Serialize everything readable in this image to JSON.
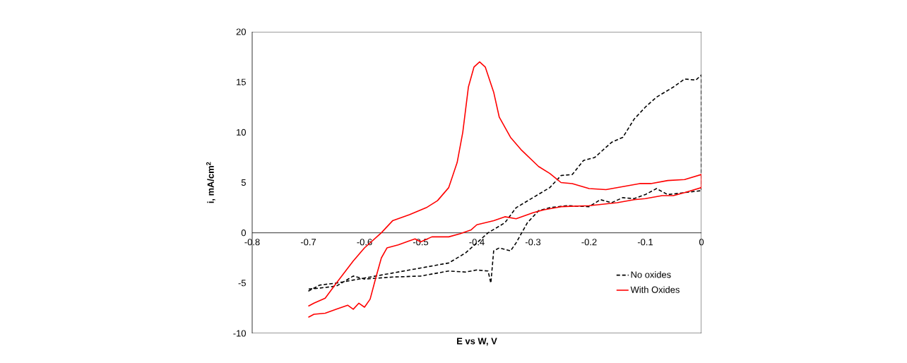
{
  "chart_data": {
    "type": "line",
    "xlabel": "E vs W, V",
    "ylabel": "i, mA/cm$^{2}$",
    "xlim": [
      -0.8,
      0
    ],
    "ylim": [
      -10,
      20
    ],
    "xticks": [
      -0.8,
      -0.7,
      -0.6,
      -0.5,
      -0.4,
      -0.3,
      -0.2,
      -0.1,
      0
    ],
    "yticks": [
      -10,
      -5,
      0,
      5,
      10,
      15,
      20
    ],
    "legend": "bottom right",
    "series": [
      {
        "name": "No oxides",
        "color": "#000000",
        "line_style": "dashed",
        "x": [
          -0.7,
          -0.68,
          -0.65,
          -0.6,
          -0.55,
          -0.5,
          -0.45,
          -0.42,
          -0.4,
          -0.38,
          -0.35,
          -0.33,
          -0.3,
          -0.27,
          -0.25,
          -0.23,
          -0.21,
          -0.19,
          -0.16,
          -0.14,
          -0.12,
          -0.1,
          -0.08,
          -0.05,
          -0.03,
          -0.01,
          0,
          0,
          -0.03,
          -0.06,
          -0.08,
          -0.1,
          -0.12,
          -0.14,
          -0.16,
          -0.18,
          -0.2,
          -0.24,
          -0.27,
          -0.29,
          -0.31,
          -0.33,
          -0.34,
          -0.36,
          -0.37,
          -0.375,
          -0.38,
          -0.4,
          -0.42,
          -0.45,
          -0.47,
          -0.5,
          -0.55,
          -0.6,
          -0.62,
          -0.65,
          -0.68,
          -0.7
        ],
        "values": [
          -5.8,
          -5.2,
          -5.0,
          -4.5,
          -4.0,
          -3.5,
          -3.0,
          -2.0,
          -1.0,
          0.0,
          1.0,
          2.5,
          3.5,
          4.5,
          5.7,
          5.8,
          7.2,
          7.5,
          9.0,
          9.5,
          11.3,
          12.5,
          13.5,
          14.5,
          15.3,
          15.2,
          15.7,
          4.2,
          4.0,
          3.8,
          4.4,
          3.8,
          3.4,
          3.5,
          3.0,
          3.3,
          2.6,
          2.7,
          2.5,
          2.2,
          1.0,
          -1.0,
          -1.8,
          -1.5,
          -1.8,
          -5.0,
          -3.8,
          -3.7,
          -3.9,
          -3.8,
          -4.0,
          -4.3,
          -4.4,
          -4.6,
          -4.3,
          -5.3,
          -5.5,
          -5.6
        ]
      },
      {
        "name": "With Oxides",
        "color": "#ff0000",
        "line_style": "solid",
        "x": [
          -0.7,
          -0.69,
          -0.67,
          -0.65,
          -0.63,
          -0.62,
          -0.61,
          -0.6,
          -0.59,
          -0.58,
          -0.57,
          -0.56,
          -0.54,
          -0.52,
          -0.51,
          -0.5,
          -0.48,
          -0.45,
          -0.43,
          -0.41,
          -0.4,
          -0.37,
          -0.35,
          -0.33,
          -0.3,
          -0.28,
          -0.25,
          -0.2,
          -0.15,
          -0.12,
          -0.1,
          -0.07,
          -0.05,
          -0.03,
          0,
          0,
          -0.03,
          -0.06,
          -0.09,
          -0.11,
          -0.14,
          -0.17,
          -0.2,
          -0.23,
          -0.25,
          -0.27,
          -0.29,
          -0.32,
          -0.34,
          -0.36,
          -0.37,
          -0.385,
          -0.395,
          -0.405,
          -0.415,
          -0.425,
          -0.435,
          -0.45,
          -0.47,
          -0.49,
          -0.52,
          -0.55,
          -0.57,
          -0.6,
          -0.62,
          -0.65,
          -0.67,
          -0.69,
          -0.7
        ],
        "values": [
          -8.4,
          -8.1,
          -8.0,
          -7.6,
          -7.2,
          -7.6,
          -7.0,
          -7.4,
          -6.6,
          -4.5,
          -2.5,
          -1.5,
          -1.2,
          -0.8,
          -0.6,
          -0.9,
          -0.4,
          -0.4,
          -0.1,
          0.3,
          0.8,
          1.2,
          1.6,
          1.4,
          2.0,
          2.3,
          2.6,
          2.7,
          3.0,
          3.3,
          3.4,
          3.7,
          3.7,
          4.0,
          4.5,
          5.8,
          5.3,
          5.2,
          4.9,
          4.9,
          4.6,
          4.3,
          4.4,
          4.9,
          5.0,
          5.9,
          6.6,
          8.2,
          9.5,
          11.5,
          14.0,
          16.5,
          17.0,
          16.5,
          14.5,
          10.0,
          7.0,
          4.5,
          3.2,
          2.5,
          1.8,
          1.2,
          0.0,
          -1.5,
          -2.8,
          -5.0,
          -6.5,
          -7.0,
          -7.3
        ]
      }
    ]
  }
}
